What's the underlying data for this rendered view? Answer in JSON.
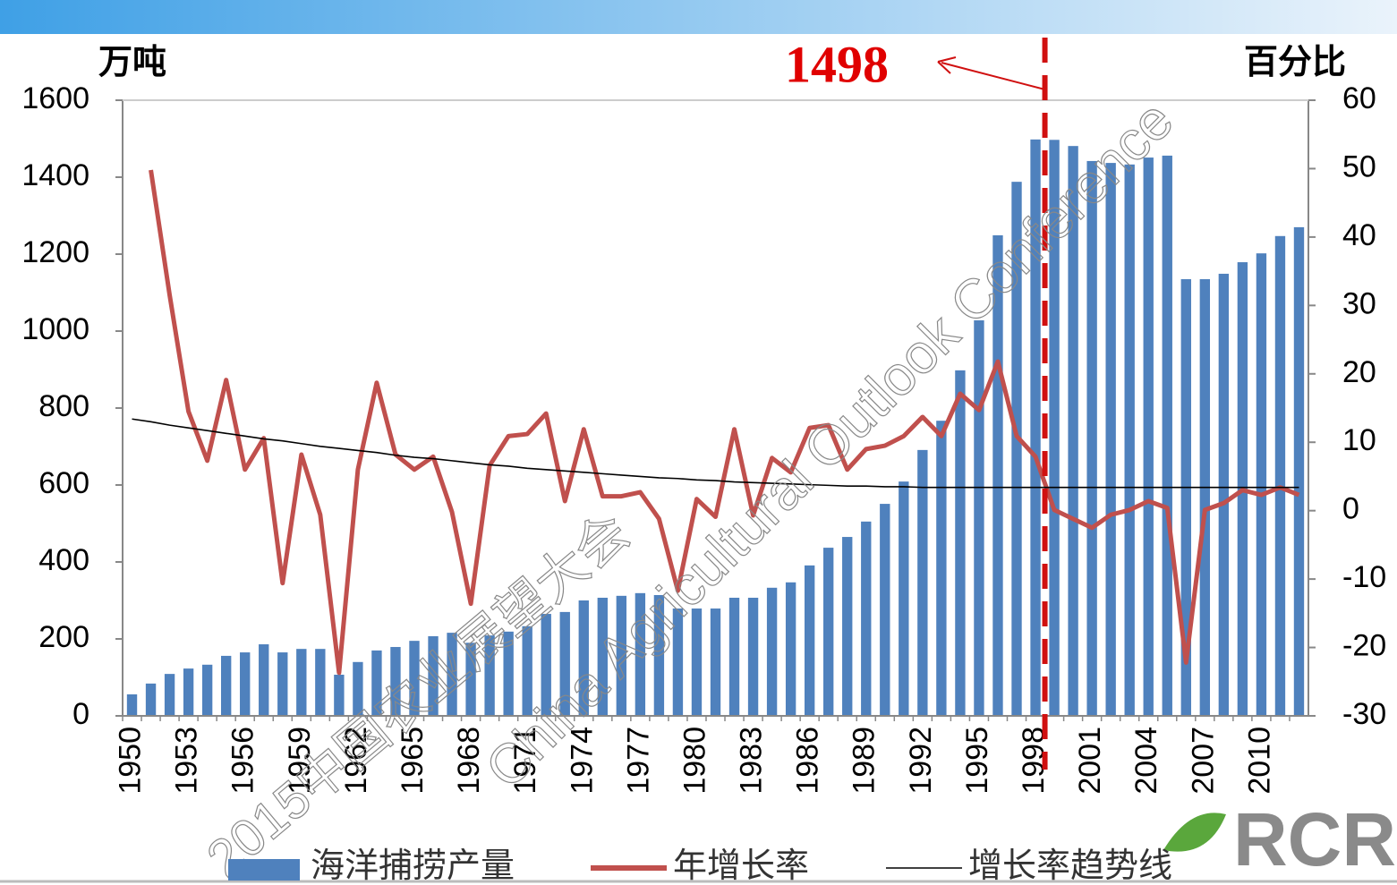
{
  "chart_data": {
    "type": "bar-line",
    "y_label": "万吨",
    "y2_label": "百分比",
    "annotation": "1498",
    "watermark": [
      "2015中国农业展望大会",
      "China Agricultural Outlook Conference"
    ],
    "logo": "RCR",
    "categories": [
      "1950",
      null,
      null,
      "1953",
      null,
      null,
      "1956",
      null,
      null,
      "1959",
      null,
      null,
      "1962",
      null,
      null,
      "1965",
      null,
      null,
      "1968",
      null,
      null,
      "1971",
      null,
      null,
      "1974",
      null,
      null,
      "1977",
      null,
      null,
      "1980",
      null,
      null,
      "1983",
      null,
      null,
      "1986",
      null,
      null,
      "1989",
      null,
      null,
      "1992",
      null,
      null,
      "1995",
      null,
      null,
      "1998",
      null,
      null,
      "2001",
      null,
      null,
      "2004",
      null,
      null,
      "2007",
      null,
      null,
      "2010",
      null,
      null
    ],
    "ylim": [
      0,
      1600
    ],
    "yticks": [
      0,
      200,
      400,
      600,
      800,
      1000,
      1200,
      1400,
      1600
    ],
    "y2lim": [
      -30,
      60
    ],
    "y2ticks": [
      -30,
      -20,
      -10,
      0,
      10,
      20,
      30,
      40,
      50,
      60
    ],
    "series": [
      {
        "name": "海洋捕捞产量",
        "kind": "bar",
        "color": "#4f81bd",
        "values": [
          56,
          84,
          109,
          123,
          133,
          156,
          165,
          186,
          165,
          174,
          174,
          107,
          140,
          170,
          179,
          195,
          207,
          216,
          190,
          209,
          219,
          233,
          265,
          270,
          300,
          307,
          312,
          319,
          314,
          279,
          279,
          279,
          307,
          307,
          333,
          347,
          391,
          437,
          465,
          505,
          551,
          609,
          691,
          767,
          898,
          1028,
          1249,
          1388,
          1498,
          1497,
          1481,
          1442,
          1437,
          1433,
          1451,
          1456,
          1135,
          1135,
          1149,
          1179,
          1202,
          1247,
          1270
        ]
      },
      {
        "name": "年增长率",
        "kind": "line",
        "axis": "y2",
        "color": "#c0504d",
        "values": [
          null,
          49.8,
          31.5,
          14.5,
          7.3,
          19.1,
          6.0,
          10.6,
          -10.6,
          8.2,
          -0.6,
          -23.7,
          6.0,
          18.7,
          8.2,
          6.0,
          7.9,
          -0.2,
          -13.6,
          6.6,
          10.9,
          11.2,
          14.2,
          1.4,
          11.9,
          2.1,
          2.1,
          2.7,
          -1.2,
          -11.7,
          1.7,
          -0.9,
          11.9,
          -0.7,
          7.7,
          5.6,
          12.1,
          12.5,
          6.0,
          9.0,
          9.5,
          10.9,
          13.7,
          10.9,
          17.1,
          14.7,
          21.8,
          10.9,
          7.9,
          0.1,
          -1.2,
          -2.5,
          -0.6,
          0.1,
          1.4,
          0.4,
          -22.2,
          0.1,
          1.1,
          3.0,
          2.3,
          3.4,
          2.3
        ]
      },
      {
        "name": "增长率趋势线",
        "kind": "trend",
        "axis": "y2",
        "color": "#000000",
        "values": [
          13.4,
          13.0,
          12.5,
          12.1,
          11.7,
          11.3,
          10.9,
          10.5,
          10.2,
          9.8,
          9.4,
          9.1,
          8.8,
          8.5,
          8.1,
          7.8,
          7.6,
          7.3,
          7.0,
          6.7,
          6.5,
          6.2,
          6.0,
          5.8,
          5.6,
          5.4,
          5.2,
          5.0,
          4.8,
          4.7,
          4.5,
          4.4,
          4.2,
          4.1,
          4.0,
          3.9,
          3.8,
          3.7,
          3.6,
          3.6,
          3.5,
          3.5,
          3.4,
          3.4,
          3.4,
          3.4,
          3.4,
          3.4,
          3.4,
          3.4,
          3.4,
          3.4,
          3.4,
          3.4,
          3.4,
          3.4,
          3.4,
          3.4,
          3.4,
          3.4,
          3.4,
          3.4,
          3.4
        ]
      }
    ]
  }
}
